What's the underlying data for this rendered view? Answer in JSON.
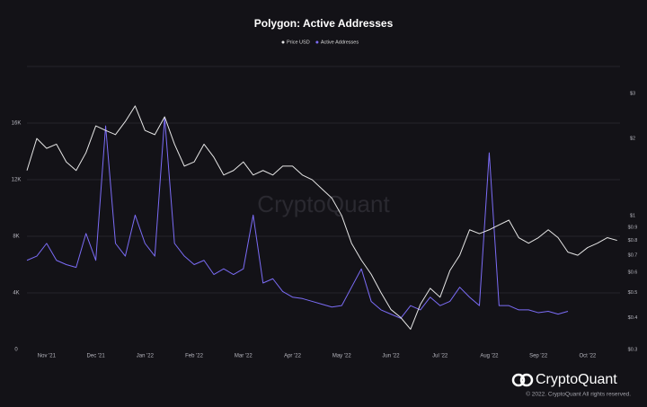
{
  "chart_data": {
    "type": "line",
    "title": "Polygon: Active Addresses",
    "watermark": "CryptoQuant",
    "brand": "CryptoQuant",
    "copyright": "© 2022. CryptoQuant All rights reserved.",
    "legend": "top",
    "grid": true,
    "y2_log": true,
    "x": [
      -0.4,
      -0.2,
      0,
      0.2,
      0.4,
      0.6,
      0.8,
      1,
      1.2,
      1.4,
      1.6,
      1.8,
      2,
      2.2,
      2.4,
      2.6,
      2.8,
      3,
      3.2,
      3.4,
      3.6,
      3.8,
      4,
      4.2,
      4.4,
      4.6,
      4.8,
      5,
      5.2,
      5.4,
      5.6,
      5.8,
      6,
      6.2,
      6.4,
      6.6,
      6.8,
      7,
      7.2,
      7.4,
      7.6,
      7.8,
      8,
      8.2,
      8.4,
      8.6,
      8.8,
      9,
      9.2,
      9.4,
      9.6,
      9.8,
      10,
      10.2,
      10.4,
      10.6,
      10.8,
      11,
      11.2,
      11.4,
      11.6
    ],
    "xlim": [
      -0.4,
      11.66
    ],
    "xticks": [
      {
        "value": 0,
        "label": "Nov '21"
      },
      {
        "value": 1,
        "label": "Dec '21"
      },
      {
        "value": 2,
        "label": "Jan '22"
      },
      {
        "value": 3,
        "label": "Feb '22"
      },
      {
        "value": 4,
        "label": "Mar '22"
      },
      {
        "value": 5,
        "label": "Apr '22"
      },
      {
        "value": 6,
        "label": "May '22"
      },
      {
        "value": 7,
        "label": "Jun '22"
      },
      {
        "value": 8,
        "label": "Jul '22"
      },
      {
        "value": 9,
        "label": "Aug '22"
      },
      {
        "value": 10,
        "label": "Sep '22"
      },
      {
        "value": 11,
        "label": "Oct '22"
      }
    ],
    "ylim": [
      0,
      20000
    ],
    "yticks": [
      0,
      {
        "value": 4000,
        "label": "4K"
      },
      {
        "value": 8000,
        "label": "8K"
      },
      {
        "value": 12000,
        "label": "12K"
      },
      {
        "value": 16000,
        "label": "16K"
      }
    ],
    "y2lim": [
      0.3,
      3.82
    ],
    "y2ticks": [
      {
        "value": 0.3,
        "label": "$0.3"
      },
      {
        "value": 0.4,
        "label": "$0.4"
      },
      {
        "value": 0.5,
        "label": "$0.5"
      },
      {
        "value": 0.6,
        "label": "$0.6"
      },
      {
        "value": 0.7,
        "label": "$0.7"
      },
      {
        "value": 0.8,
        "label": "$0.8"
      },
      {
        "value": 0.9,
        "label": "$0.9"
      },
      {
        "value": 1,
        "label": "$1"
      },
      {
        "value": 2,
        "label": "$2"
      },
      {
        "value": 3,
        "label": "$3"
      }
    ],
    "series": [
      {
        "name": "Price USD",
        "color": "#e6e6e6",
        "axis": "y2",
        "values": [
          1.5,
          2.0,
          1.83,
          1.9,
          1.62,
          1.5,
          1.76,
          2.24,
          2.15,
          2.07,
          2.33,
          2.68,
          2.15,
          2.07,
          2.43,
          1.9,
          1.56,
          1.62,
          1.9,
          1.69,
          1.44,
          1.5,
          1.62,
          1.44,
          1.5,
          1.44,
          1.56,
          1.56,
          1.44,
          1.38,
          1.27,
          1.17,
          1.0,
          0.78,
          0.67,
          0.59,
          0.5,
          0.43,
          0.4,
          0.36,
          0.45,
          0.52,
          0.48,
          0.61,
          0.7,
          0.88,
          0.85,
          0.88,
          0.92,
          0.96,
          0.82,
          0.78,
          0.82,
          0.88,
          0.82,
          0.72,
          0.7,
          0.75,
          0.78,
          0.82,
          0.8
        ]
      },
      {
        "name": "Active Addresses",
        "color": "#7b6cf6",
        "values": [
          6300,
          6600,
          7500,
          6300,
          6000,
          5800,
          8200,
          6300,
          15800,
          7500,
          6600,
          9500,
          7500,
          6600,
          16400,
          7500,
          6600,
          6000,
          6300,
          5300,
          5700,
          5300,
          5700,
          9500,
          4700,
          5000,
          4100,
          3700,
          3600,
          3400,
          3200,
          3000,
          3100,
          4400,
          5700,
          3400,
          2800,
          2500,
          2200,
          3100,
          2800,
          3700,
          3100,
          3400,
          4400,
          3700,
          3100,
          13900,
          3100,
          3100,
          2800,
          2800,
          2600,
          2700,
          2500,
          2700,
          null,
          null,
          null,
          null,
          null
        ]
      }
    ]
  }
}
